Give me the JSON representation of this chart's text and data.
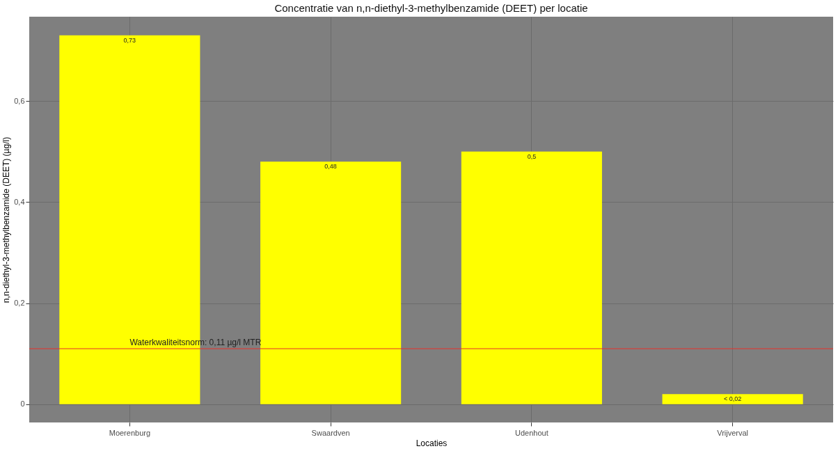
{
  "chart_data": {
    "type": "bar",
    "title": "Concentratie van n,n-diethyl-3-methylbenzamide (DEET) per locatie",
    "xlabel": "Locaties",
    "ylabel": "n,n-diethyl-3-methylbenzamide (DEET) (µg/l)",
    "categories": [
      "Moerenburg",
      "Swaardven",
      "Udenhout",
      "Vrijverval"
    ],
    "values": [
      0.73,
      0.48,
      0.5,
      0.02
    ],
    "value_labels": [
      "0,73",
      "0,48",
      "0,5",
      "< 0,02"
    ],
    "color": "#ffff00",
    "ylim": [
      -0.036,
      0.767
    ],
    "yticks": [
      0,
      {
        "value": 0.2,
        "label": "0,2"
      },
      {
        "value": 0.4,
        "label": "0,4"
      },
      {
        "value": 0.6,
        "label": "0,6"
      }
    ],
    "ref_lines": [
      {
        "axis": "y",
        "value": 0.11,
        "label": "Waterkwaliteitsnorm:  0,11   µg/l   MTR",
        "color": "#e8302a"
      }
    ],
    "grid": true
  }
}
